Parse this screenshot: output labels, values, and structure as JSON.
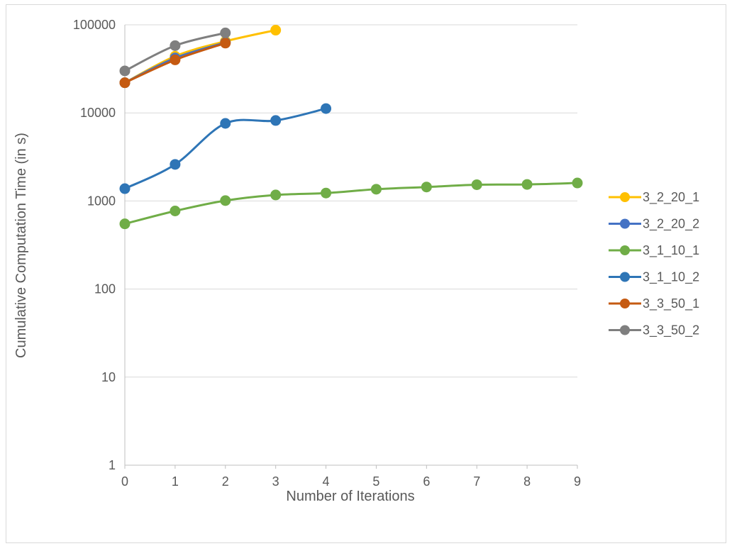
{
  "chart_data": {
    "type": "line",
    "scale_y": "log",
    "xlabel": "Number of Iterations",
    "ylabel": "Cumulative Computation Time (in s)",
    "xlim": [
      0,
      9
    ],
    "ylim": [
      1,
      100000
    ],
    "x_ticks": [
      "0",
      "1",
      "2",
      "3",
      "4",
      "5",
      "6",
      "7",
      "8",
      "9"
    ],
    "y_ticks": [
      "1",
      "10",
      "100",
      "1000",
      "10000",
      "100000"
    ],
    "y_tick_values": [
      1,
      10,
      100,
      1000,
      10000,
      100000
    ],
    "grid": true,
    "legend_position": "right",
    "series": [
      {
        "name": "3_2_20_1",
        "color": "#FFC000",
        "x": [
          0,
          1,
          2,
          3
        ],
        "values": [
          22000,
          44000,
          65000,
          87000
        ]
      },
      {
        "name": "3_2_20_2",
        "color": "#4472C4",
        "x": [
          0,
          1,
          2
        ],
        "values": [
          22000,
          42000,
          63000
        ]
      },
      {
        "name": "3_1_10_1",
        "color": "#70AD47",
        "x": [
          0,
          1,
          2,
          3,
          4,
          5,
          6,
          7,
          8,
          9
        ],
        "values": [
          550,
          770,
          1010,
          1170,
          1230,
          1360,
          1440,
          1530,
          1540,
          1600
        ]
      },
      {
        "name": "3_1_10_2",
        "color": "#2E75B6",
        "x": [
          0,
          1,
          2,
          3,
          4
        ],
        "values": [
          1380,
          2600,
          7600,
          8200,
          11200
        ]
      },
      {
        "name": "3_3_50_1",
        "color": "#C55A11",
        "x": [
          0,
          1,
          2
        ],
        "values": [
          22000,
          40000,
          62000
        ]
      },
      {
        "name": "3_3_50_2",
        "color": "#7F7F7F",
        "x": [
          0,
          1,
          2
        ],
        "values": [
          30000,
          58000,
          81000
        ]
      }
    ]
  }
}
